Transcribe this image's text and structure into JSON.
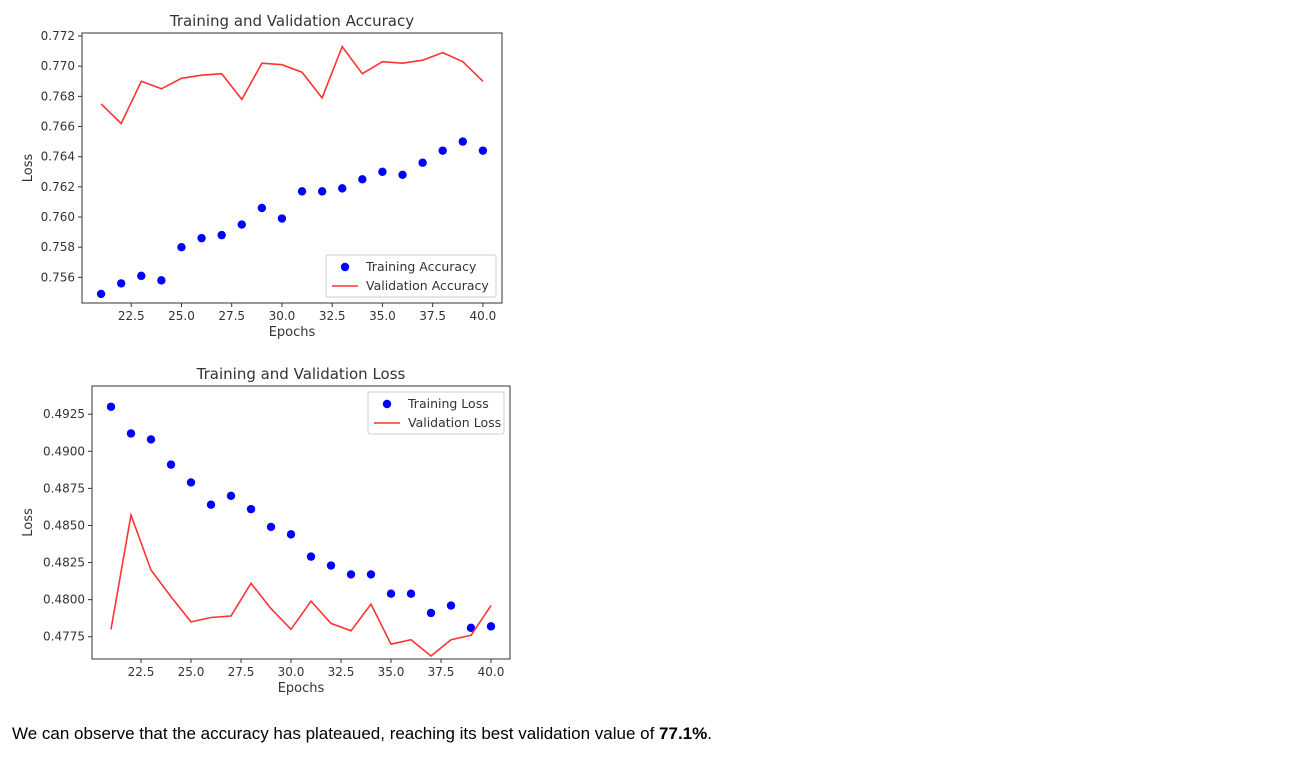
{
  "colors": {
    "training": "#0000ff",
    "validation": "#ff3333",
    "axes": "#333333"
  },
  "caption": {
    "before": "We can observe that the accuracy has plateaued, reaching its best validation value of ",
    "highlight": "77.1%",
    "after": "."
  },
  "chart_data": [
    {
      "type": "scatter",
      "title": "Training and Validation Accuracy",
      "xlabel": "Epochs",
      "ylabel": "Loss",
      "xlim": [
        20.05,
        40.95
      ],
      "ylim": [
        0.7543,
        0.7722
      ],
      "xticks": [
        22.5,
        25.0,
        27.5,
        30.0,
        32.5,
        35.0,
        37.5,
        40.0
      ],
      "xtick_labels": [
        "22.5",
        "25.0",
        "27.5",
        "30.0",
        "32.5",
        "35.0",
        "37.5",
        "40.0"
      ],
      "yticks": [
        0.756,
        0.758,
        0.76,
        0.762,
        0.764,
        0.766,
        0.768,
        0.77,
        0.772
      ],
      "ytick_labels": [
        "0.756",
        "0.758",
        "0.760",
        "0.762",
        "0.764",
        "0.766",
        "0.768",
        "0.770",
        "0.772"
      ],
      "legend": "lower-right",
      "grid": false,
      "x": [
        21,
        22,
        23,
        24,
        25,
        26,
        27,
        28,
        29,
        30,
        31,
        32,
        33,
        34,
        35,
        36,
        37,
        38,
        39,
        40
      ],
      "series": [
        {
          "name": "Training Accuracy",
          "style": "dots",
          "values": [
            0.7549,
            0.7556,
            0.7561,
            0.7558,
            0.758,
            0.7586,
            0.7588,
            0.7595,
            0.7606,
            0.7599,
            0.7617,
            0.7617,
            0.7619,
            0.7625,
            0.763,
            0.7628,
            0.7636,
            0.7644,
            0.765,
            0.7644
          ]
        },
        {
          "name": "Validation Accuracy",
          "style": "line",
          "values": [
            0.7675,
            0.7662,
            0.769,
            0.7685,
            0.7692,
            0.7694,
            0.7695,
            0.7678,
            0.7702,
            0.7701,
            0.7696,
            0.7679,
            0.7713,
            0.7695,
            0.7703,
            0.7702,
            0.7704,
            0.7709,
            0.7703,
            0.769
          ]
        }
      ]
    },
    {
      "type": "scatter",
      "title": "Training and Validation Loss",
      "xlabel": "Epochs",
      "ylabel": "Loss",
      "xlim": [
        20.05,
        40.95
      ],
      "ylim": [
        0.476,
        0.4944
      ],
      "xticks": [
        22.5,
        25.0,
        27.5,
        30.0,
        32.5,
        35.0,
        37.5,
        40.0
      ],
      "xtick_labels": [
        "22.5",
        "25.0",
        "27.5",
        "30.0",
        "32.5",
        "35.0",
        "37.5",
        "40.0"
      ],
      "yticks": [
        0.4775,
        0.48,
        0.4825,
        0.485,
        0.4875,
        0.49,
        0.4925
      ],
      "ytick_labels": [
        "0.4775",
        "0.4800",
        "0.4825",
        "0.4850",
        "0.4875",
        "0.4900",
        "0.4925"
      ],
      "legend": "upper-right",
      "grid": false,
      "x": [
        21,
        22,
        23,
        24,
        25,
        26,
        27,
        28,
        29,
        30,
        31,
        32,
        33,
        34,
        35,
        36,
        37,
        38,
        39,
        40
      ],
      "series": [
        {
          "name": "Training Loss",
          "style": "dots",
          "values": [
            0.493,
            0.4912,
            0.4908,
            0.4891,
            0.4879,
            0.4864,
            0.487,
            0.4861,
            0.4849,
            0.4844,
            0.4829,
            0.4823,
            0.4817,
            0.4817,
            0.4804,
            0.4804,
            0.4791,
            0.4796,
            0.4781,
            0.4782
          ]
        },
        {
          "name": "Validation Loss",
          "style": "line",
          "values": [
            0.478,
            0.4857,
            0.482,
            0.4802,
            0.4785,
            0.4788,
            0.4789,
            0.4811,
            0.4794,
            0.478,
            0.4799,
            0.4784,
            0.4779,
            0.4797,
            0.477,
            0.4773,
            0.4762,
            0.4773,
            0.4776,
            0.4796
          ]
        }
      ]
    }
  ]
}
